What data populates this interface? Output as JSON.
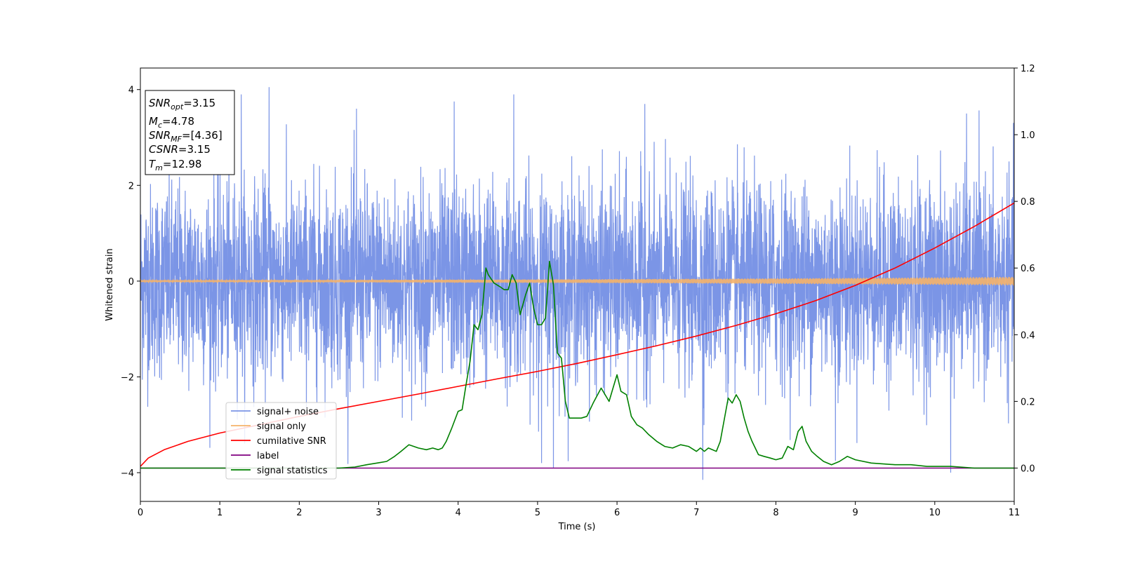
{
  "chart_data": {
    "type": "line",
    "xlabel": "Time (s)",
    "ylabel": "Whitened strain",
    "xlim": [
      0,
      11
    ],
    "ylim": [
      -4.6,
      4.45
    ],
    "ylim_right": [
      -0.1,
      1.2
    ],
    "x_ticks": [
      0,
      1,
      2,
      3,
      4,
      5,
      6,
      7,
      8,
      9,
      10,
      11
    ],
    "y_ticks": [
      -4,
      -2,
      0,
      2,
      4
    ],
    "y_ticks_right": [
      0.0,
      0.2,
      0.4,
      0.6,
      0.8,
      1.0,
      1.2
    ],
    "grid": false,
    "legend_position": "lower-left",
    "colors": {
      "signal_noise": "#7b95e6",
      "signal_only": "#f5b26a",
      "cumulative_snr": "#ff0000",
      "label": "#800080",
      "signal_statistics": "#008000"
    },
    "annotation": {
      "lines": [
        {
          "sym": "SNR",
          "sub": "opt",
          "value": "=3.15"
        },
        {
          "sym": "M",
          "sub": "c",
          "value": "=4.78"
        },
        {
          "sym": "SNR",
          "sub": "MF",
          "value": "=[4.36]"
        },
        {
          "sym": "CSNR",
          "sub": "",
          "value": "=3.15"
        },
        {
          "sym": "T",
          "sub": "m",
          "value": "=12.98"
        }
      ]
    },
    "series": [
      {
        "name": "signal+ noise",
        "axis": "left",
        "description_band": {
          "typical_min": -2.0,
          "typical_max": 2.0,
          "extreme_min": -4.15,
          "extreme_max": 4.05
        },
        "spikes": [
          {
            "x": 1.62,
            "y": 4.05
          },
          {
            "x": 4.7,
            "y": 3.9
          },
          {
            "x": 1.27,
            "y": 3.9
          },
          {
            "x": 5.2,
            "y": -3.9
          },
          {
            "x": 7.08,
            "y": -4.15
          },
          {
            "x": 10.2,
            "y": -4.0
          },
          {
            "x": 2.72,
            "y": 3.6
          },
          {
            "x": 6.35,
            "y": 3.7
          },
          {
            "x": 8.75,
            "y": -3.75
          },
          {
            "x": 3.95,
            "y": 3.75
          },
          {
            "x": 10.4,
            "y": 3.5
          },
          {
            "x": 5.05,
            "y": -3.8
          }
        ]
      },
      {
        "name": "signal only",
        "axis": "left",
        "amplitude_start": 0.02,
        "amplitude_end": 0.09
      },
      {
        "name": "cumilative SNR",
        "axis": "right",
        "x": [
          0,
          0.1,
          0.3,
          0.6,
          1,
          1.5,
          2,
          2.5,
          3,
          3.5,
          4,
          4.5,
          5,
          5.5,
          6,
          6.5,
          7,
          7.5,
          8,
          8.5,
          9,
          9.5,
          10,
          10.5,
          11
        ],
        "values": [
          0.005,
          0.03,
          0.055,
          0.08,
          0.105,
          0.13,
          0.155,
          0.178,
          0.2,
          0.222,
          0.245,
          0.268,
          0.29,
          0.314,
          0.34,
          0.367,
          0.396,
          0.428,
          0.463,
          0.502,
          0.548,
          0.6,
          0.66,
          0.725,
          0.795
        ]
      },
      {
        "name": "label",
        "axis": "right",
        "x": [
          0,
          11
        ],
        "values": [
          0.0,
          0.0
        ]
      },
      {
        "name": "signal statistics",
        "axis": "right",
        "x": [
          0,
          2.5,
          2.7,
          2.85,
          3.0,
          3.1,
          3.2,
          3.28,
          3.38,
          3.5,
          3.6,
          3.68,
          3.75,
          3.8,
          3.85,
          3.92,
          4.0,
          4.05,
          4.1,
          4.15,
          4.2,
          4.25,
          4.3,
          4.35,
          4.38,
          4.45,
          4.52,
          4.58,
          4.63,
          4.68,
          4.73,
          4.78,
          4.85,
          4.9,
          4.95,
          5.0,
          5.05,
          5.1,
          5.15,
          5.2,
          5.25,
          5.3,
          5.35,
          5.4,
          5.5,
          5.55,
          5.62,
          5.7,
          5.8,
          5.9,
          5.95,
          6.0,
          6.05,
          6.12,
          6.18,
          6.25,
          6.32,
          6.4,
          6.5,
          6.6,
          6.7,
          6.8,
          6.9,
          7.0,
          7.05,
          7.1,
          7.15,
          7.25,
          7.3,
          7.4,
          7.45,
          7.5,
          7.55,
          7.6,
          7.65,
          7.7,
          7.78,
          7.85,
          7.93,
          8.0,
          8.08,
          8.15,
          8.22,
          8.28,
          8.33,
          8.38,
          8.45,
          8.52,
          8.6,
          8.7,
          8.8,
          8.9,
          9.0,
          9.2,
          9.5,
          9.7,
          9.9,
          10.2,
          10.5,
          11
        ],
        "values": [
          0.0,
          0.0,
          0.003,
          0.01,
          0.016,
          0.02,
          0.035,
          0.05,
          0.07,
          0.06,
          0.055,
          0.06,
          0.055,
          0.06,
          0.08,
          0.12,
          0.17,
          0.175,
          0.25,
          0.32,
          0.43,
          0.415,
          0.46,
          0.6,
          0.58,
          0.555,
          0.545,
          0.535,
          0.535,
          0.58,
          0.555,
          0.46,
          0.52,
          0.555,
          0.48,
          0.43,
          0.43,
          0.45,
          0.62,
          0.55,
          0.345,
          0.33,
          0.2,
          0.15,
          0.15,
          0.15,
          0.155,
          0.195,
          0.24,
          0.2,
          0.24,
          0.28,
          0.23,
          0.22,
          0.155,
          0.13,
          0.12,
          0.1,
          0.08,
          0.065,
          0.06,
          0.07,
          0.065,
          0.05,
          0.06,
          0.05,
          0.06,
          0.05,
          0.08,
          0.21,
          0.195,
          0.22,
          0.2,
          0.15,
          0.11,
          0.08,
          0.04,
          0.035,
          0.03,
          0.025,
          0.03,
          0.065,
          0.055,
          0.11,
          0.125,
          0.08,
          0.05,
          0.035,
          0.02,
          0.01,
          0.02,
          0.035,
          0.025,
          0.015,
          0.01,
          0.01,
          0.005,
          0.005,
          0.0,
          0.0
        ]
      }
    ]
  }
}
